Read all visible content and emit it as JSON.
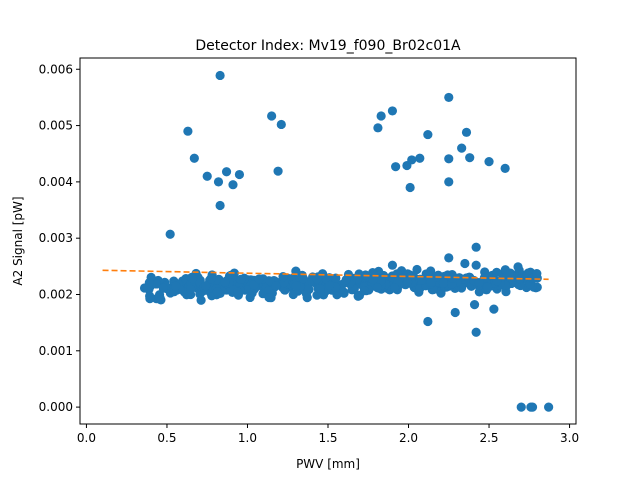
{
  "chart_data": {
    "type": "scatter",
    "title": "Detector Index: Mv19_f090_Br02c01A",
    "xlabel": "PWV [mm]",
    "ylabel": "A2 Signal [pW]",
    "xlim": [
      -0.04,
      3.04
    ],
    "ylim": [
      -0.0003,
      0.0062
    ],
    "x_ticks": [
      0.0,
      0.5,
      1.0,
      1.5,
      2.0,
      2.5,
      3.0
    ],
    "x_tick_labels": [
      "0.0",
      "0.5",
      "1.0",
      "1.5",
      "2.0",
      "2.5",
      "3.0"
    ],
    "y_ticks": [
      0.0,
      0.001,
      0.002,
      0.003,
      0.004,
      0.005,
      0.006
    ],
    "y_tick_labels": [
      "0.000",
      "0.001",
      "0.002",
      "0.003",
      "0.004",
      "0.005",
      "0.006"
    ],
    "grid": false,
    "colors": {
      "points": "#1f77b4",
      "fit": "#ff7f0e",
      "axes": "#000000"
    },
    "outliers": [
      {
        "x": 0.52,
        "y": 0.00307
      },
      {
        "x": 0.63,
        "y": 0.0049
      },
      {
        "x": 0.67,
        "y": 0.00442
      },
      {
        "x": 0.75,
        "y": 0.0041
      },
      {
        "x": 0.82,
        "y": 0.004
      },
      {
        "x": 0.87,
        "y": 0.00418
      },
      {
        "x": 0.83,
        "y": 0.00589
      },
      {
        "x": 0.83,
        "y": 0.00358
      },
      {
        "x": 0.91,
        "y": 0.00395
      },
      {
        "x": 0.95,
        "y": 0.00413
      },
      {
        "x": 1.15,
        "y": 0.00517
      },
      {
        "x": 1.19,
        "y": 0.00419
      },
      {
        "x": 1.21,
        "y": 0.00502
      },
      {
        "x": 1.81,
        "y": 0.00496
      },
      {
        "x": 1.83,
        "y": 0.00517
      },
      {
        "x": 1.9,
        "y": 0.00526
      },
      {
        "x": 1.92,
        "y": 0.00427
      },
      {
        "x": 1.99,
        "y": 0.00429
      },
      {
        "x": 2.02,
        "y": 0.00439
      },
      {
        "x": 2.07,
        "y": 0.00442
      },
      {
        "x": 2.01,
        "y": 0.0039
      },
      {
        "x": 2.12,
        "y": 0.00484
      },
      {
        "x": 2.25,
        "y": 0.0055
      },
      {
        "x": 2.25,
        "y": 0.00441
      },
      {
        "x": 2.25,
        "y": 0.004
      },
      {
        "x": 2.33,
        "y": 0.0046
      },
      {
        "x": 2.36,
        "y": 0.00488
      },
      {
        "x": 2.38,
        "y": 0.00443
      },
      {
        "x": 2.5,
        "y": 0.00436
      },
      {
        "x": 2.6,
        "y": 0.00424
      },
      {
        "x": 2.12,
        "y": 0.00152
      },
      {
        "x": 2.29,
        "y": 0.00168
      },
      {
        "x": 2.41,
        "y": 0.00182
      },
      {
        "x": 2.42,
        "y": 0.00133
      },
      {
        "x": 2.53,
        "y": 0.00174
      },
      {
        "x": 2.7,
        "y": 0.0
      },
      {
        "x": 2.76,
        "y": 0.0
      },
      {
        "x": 2.77,
        "y": 0.0
      },
      {
        "x": 2.87,
        "y": 0.0
      },
      {
        "x": 2.42,
        "y": 0.00284
      },
      {
        "x": 2.25,
        "y": 0.00265
      },
      {
        "x": 1.9,
        "y": 0.00252
      },
      {
        "x": 2.35,
        "y": 0.00255
      },
      {
        "x": 2.42,
        "y": 0.00252
      },
      {
        "x": 2.68,
        "y": 0.00249
      }
    ],
    "cluster": {
      "x_min": 0.36,
      "x_max": 2.8,
      "count": 560,
      "center_start": 0.00212,
      "center_end": 0.00226,
      "spread": 9e-05,
      "seed": 7
    },
    "fit_line": {
      "x": [
        0.1,
        2.87
      ],
      "y": [
        0.00243,
        0.00227
      ],
      "style": "dashed"
    }
  }
}
